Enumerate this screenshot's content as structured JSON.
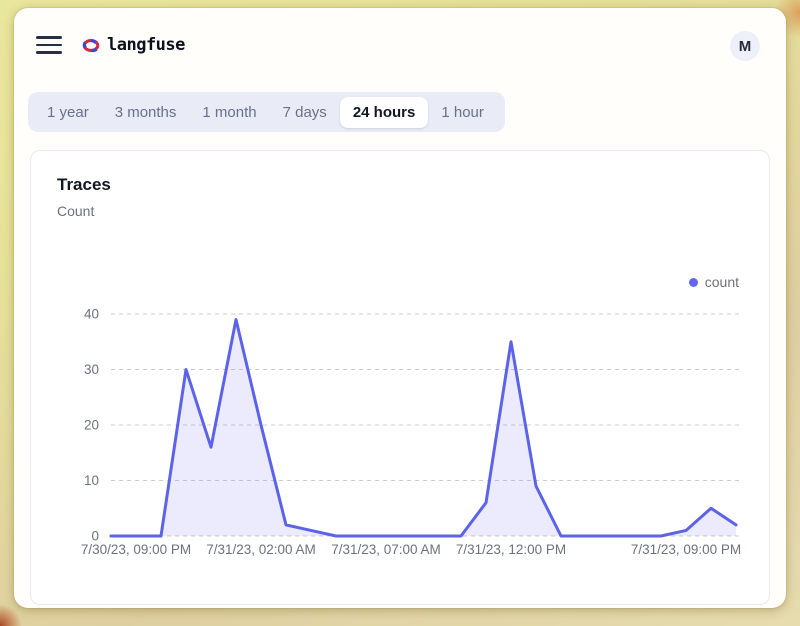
{
  "header": {
    "brand": "langfuse",
    "avatar_label": "M"
  },
  "icons": {
    "hamburger-menu-icon": "three horizontal bars",
    "langfuse-knot-logo-icon": "red and blue knot glyph"
  },
  "time_tabs": {
    "items": [
      {
        "label": "1 year",
        "selected": false
      },
      {
        "label": "3 months",
        "selected": false
      },
      {
        "label": "1 month",
        "selected": false
      },
      {
        "label": "7 days",
        "selected": false
      },
      {
        "label": "24 hours",
        "selected": true
      },
      {
        "label": "1 hour",
        "selected": false
      }
    ]
  },
  "card": {
    "title": "Traces",
    "subtitle": "Count",
    "legend": [
      {
        "label": "count",
        "color": "#6366f1"
      }
    ]
  },
  "chart_data": {
    "type": "area",
    "title": "Traces",
    "ylabel": "Count",
    "series": [
      {
        "name": "count",
        "values": [
          0,
          0,
          0,
          30,
          16,
          39,
          20,
          2,
          1,
          0,
          0,
          0,
          0,
          0,
          0,
          6,
          35,
          9,
          0,
          0,
          0,
          0,
          0,
          1,
          5,
          2
        ]
      }
    ],
    "x_tick_labels": [
      {
        "index": 1,
        "label": "7/30/23, 09:00 PM"
      },
      {
        "index": 6,
        "label": "7/31/23, 02:00 AM"
      },
      {
        "index": 11,
        "label": "7/31/23, 07:00 AM"
      },
      {
        "index": 16,
        "label": "7/31/23, 12:00 PM"
      },
      {
        "index": 23,
        "label": "7/31/23, 09:00 PM"
      }
    ],
    "y_ticks": [
      0,
      10,
      20,
      30,
      40
    ],
    "ylim": [
      0,
      40
    ],
    "grid": "horizontal-dashed",
    "legend_position": "top-right",
    "line_color": "#5c63e8",
    "fill_color": "rgba(99,102,241,0.13)",
    "axis_text_color": "#6b7280",
    "grid_color": "#c9cdd6"
  },
  "colors": {
    "accent_indigo": "#6366f1",
    "tabs_bar_bg": "#e9ecf6",
    "window_bg": "#fffefb",
    "desktop_bg": "#e4dd9e"
  }
}
